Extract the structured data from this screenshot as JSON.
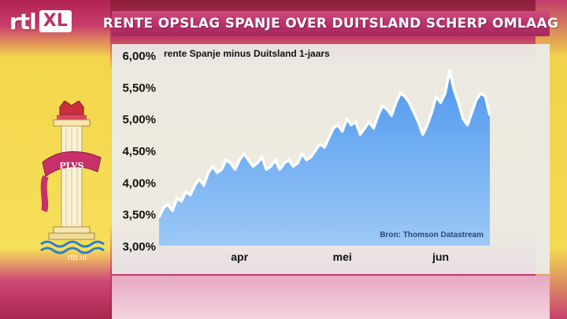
{
  "header": {
    "logo_text": "rtl",
    "logo_badge": "XL",
    "title": "RENTE OPSLAG SPANJE OVER DUITSLAND SCHERP OMLAAG"
  },
  "emblem": {
    "motto": "PLVS",
    "url": "rtlz.nl",
    "icon": "pillar-of-hercules-icon"
  },
  "colors": {
    "title_bar": "#b8306a",
    "area_fill": "#5aa2f0",
    "line": "#ffffff",
    "panel": "#ececec"
  },
  "chart_data": {
    "type": "area",
    "title": "rente Spanje minus Duitsland 1-jaars",
    "source": "Bron: Thomson Datastream",
    "ylim": [
      3.0,
      6.0
    ],
    "yticks": [
      "3,00%",
      "3,50%",
      "4,00%",
      "4,50%",
      "5,00%",
      "5,50%",
      "6,00%"
    ],
    "xtick_labels": [
      "apr",
      "mei",
      "jun"
    ],
    "xtick_positions": [
      18,
      41,
      63
    ],
    "grid": false,
    "series": [
      {
        "x": [
          0,
          1,
          2,
          3,
          4,
          5,
          6,
          7,
          8,
          9,
          10,
          11,
          12,
          13,
          14,
          15,
          16,
          17,
          18,
          19,
          20,
          21,
          22,
          23,
          24,
          25,
          26,
          27,
          28,
          29,
          30,
          31,
          32,
          33,
          34,
          35,
          36,
          37,
          38,
          39,
          40,
          41,
          42,
          43,
          44,
          45,
          46,
          47,
          48,
          49,
          50,
          51,
          52,
          53,
          54,
          55,
          56,
          57,
          58,
          59,
          60,
          61,
          62,
          63,
          64,
          65,
          66,
          67,
          68,
          69,
          70,
          71,
          72,
          73,
          74
        ],
        "values": [
          3.45,
          3.6,
          3.65,
          3.55,
          3.75,
          3.7,
          3.85,
          3.8,
          3.95,
          4.05,
          3.95,
          4.15,
          4.25,
          4.15,
          4.2,
          4.35,
          4.3,
          4.2,
          4.35,
          4.45,
          4.35,
          4.25,
          4.3,
          4.4,
          4.2,
          4.25,
          4.35,
          4.2,
          4.3,
          4.35,
          4.25,
          4.3,
          4.45,
          4.35,
          4.4,
          4.5,
          4.6,
          4.55,
          4.7,
          4.85,
          4.9,
          4.8,
          5.0,
          4.9,
          4.95,
          4.75,
          4.85,
          4.95,
          4.85,
          5.05,
          5.2,
          5.15,
          5.05,
          5.25,
          5.4,
          5.35,
          5.25,
          5.1,
          4.95,
          4.75,
          4.9,
          5.1,
          5.35,
          5.25,
          5.4,
          5.75,
          5.45,
          5.25,
          5.0,
          4.9,
          5.1,
          5.3,
          5.4,
          5.35,
          5.05
        ]
      }
    ]
  }
}
